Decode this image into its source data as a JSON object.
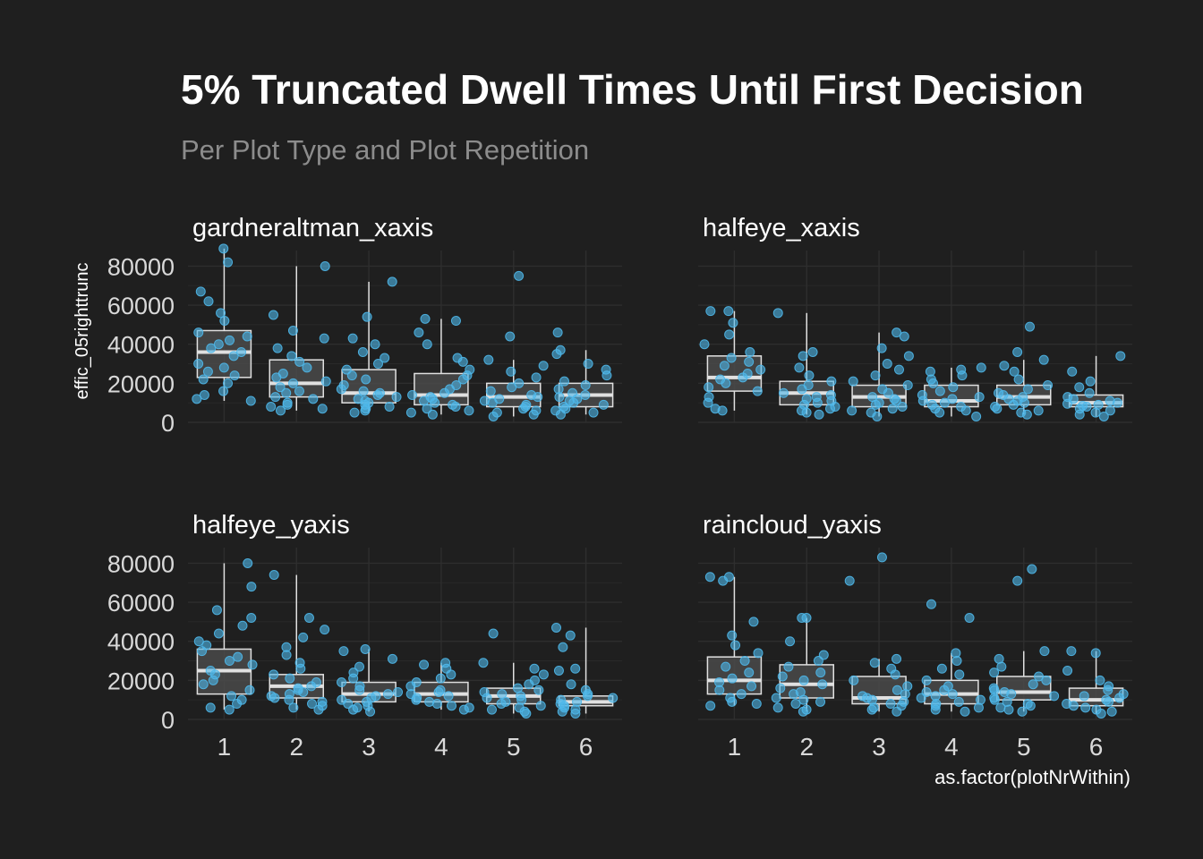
{
  "chart_data": {
    "type": "box",
    "title": "5% Truncated Dwell Times Until First Decision",
    "subtitle": "Per Plot Type and Plot Repetition",
    "xlabel": "as.factor(plotNrWithin)",
    "ylabel": "effic_05righttrunc",
    "categories": [
      "1",
      "2",
      "3",
      "4",
      "5",
      "6"
    ],
    "y_ticks": [
      "0",
      "20000",
      "40000",
      "60000",
      "80000"
    ],
    "ylim": [
      0,
      88000
    ],
    "grid": true,
    "colors": {
      "background": "#1f1f1f",
      "box_fill": "#4a4a4a",
      "box_line": "#e0e0e0",
      "points": "#4fb8ea",
      "grid": "#2e2e2e"
    },
    "facets": [
      {
        "label": "gardneraltman_xaxis",
        "boxes": [
          {
            "q1": 23000,
            "median": 36000,
            "q3": 47000,
            "lower": 11000,
            "upper": 89000
          },
          {
            "q1": 13000,
            "median": 20000,
            "q3": 32000,
            "lower": 6000,
            "upper": 80000
          },
          {
            "q1": 10000,
            "median": 15000,
            "q3": 27000,
            "lower": 5000,
            "upper": 72000
          },
          {
            "q1": 9000,
            "median": 14000,
            "q3": 25000,
            "lower": 4000,
            "upper": 53000
          },
          {
            "q1": 8000,
            "median": 13000,
            "q3": 20000,
            "lower": 3000,
            "upper": 32000
          },
          {
            "q1": 8000,
            "median": 14000,
            "q3": 20000,
            "lower": 4000,
            "upper": 37000
          }
        ],
        "points": [
          [
            89000,
            82000,
            67000,
            62000,
            56000,
            52000,
            46000,
            44000,
            42000,
            40000,
            38000,
            36000,
            34000,
            30000,
            28000,
            26000,
            24000,
            22000,
            20000,
            16000,
            14000,
            12000,
            11000
          ],
          [
            80000,
            55000,
            47000,
            43000,
            38000,
            34000,
            31000,
            28000,
            25000,
            23000,
            21000,
            20000,
            18000,
            16000,
            15000,
            13000,
            12000,
            10000,
            9000,
            8000,
            7000,
            6000
          ],
          [
            72000,
            54000,
            43000,
            40000,
            36000,
            33000,
            30000,
            27000,
            24000,
            22000,
            19000,
            17000,
            16000,
            15000,
            14000,
            13000,
            12000,
            11000,
            10000,
            9000,
            8000,
            7000,
            6000,
            5000
          ],
          [
            53000,
            52000,
            46000,
            40000,
            33000,
            31000,
            27000,
            24000,
            22000,
            19000,
            17000,
            15000,
            14000,
            13000,
            12000,
            11000,
            10000,
            9000,
            8000,
            7000,
            6000,
            5000,
            4000
          ],
          [
            75000,
            44000,
            32000,
            29000,
            26000,
            23000,
            20000,
            18000,
            16000,
            14000,
            13000,
            12000,
            11000,
            10000,
            9000,
            8000,
            7000,
            6000,
            5000,
            4000,
            3000
          ],
          [
            46000,
            37000,
            35000,
            30000,
            27000,
            24000,
            21000,
            19000,
            17000,
            15000,
            14000,
            13000,
            12000,
            11000,
            10000,
            9000,
            8000,
            7000,
            6000,
            5000,
            4000
          ]
        ]
      },
      {
        "label": "halfeye_xaxis",
        "boxes": [
          {
            "q1": 16000,
            "median": 23000,
            "q3": 34000,
            "lower": 6000,
            "upper": 57000
          },
          {
            "q1": 9000,
            "median": 15000,
            "q3": 21000,
            "lower": 4000,
            "upper": 56000
          },
          {
            "q1": 8000,
            "median": 13000,
            "q3": 19000,
            "lower": 3000,
            "upper": 46000
          },
          {
            "q1": 8000,
            "median": 11000,
            "q3": 19000,
            "lower": 3000,
            "upper": 28000
          },
          {
            "q1": 9000,
            "median": 13000,
            "q3": 19000,
            "lower": 4000,
            "upper": 32000
          },
          {
            "q1": 8000,
            "median": 10000,
            "q3": 14000,
            "lower": 3000,
            "upper": 34000
          }
        ],
        "points": [
          [
            57000,
            57000,
            51000,
            45000,
            40000,
            36000,
            33000,
            31000,
            29000,
            27000,
            25000,
            23000,
            22000,
            20000,
            18000,
            16000,
            13000,
            10000,
            7000,
            6000
          ],
          [
            56000,
            36000,
            34000,
            28000,
            24000,
            21000,
            19000,
            17000,
            15000,
            14000,
            13000,
            12000,
            11000,
            10000,
            9000,
            8000,
            7000,
            6000,
            5000,
            4000
          ],
          [
            46000,
            44000,
            38000,
            34000,
            30000,
            27000,
            24000,
            21000,
            19000,
            17000,
            15000,
            13000,
            12000,
            11000,
            10000,
            9000,
            8000,
            7000,
            6000,
            5000,
            3000
          ],
          [
            28000,
            27000,
            26000,
            24000,
            22000,
            20000,
            18000,
            16000,
            14000,
            13000,
            12000,
            11000,
            10000,
            9000,
            8000,
            7000,
            6000,
            5000,
            3000
          ],
          [
            49000,
            36000,
            32000,
            29000,
            26000,
            22000,
            19000,
            17000,
            15000,
            14000,
            13000,
            12000,
            11000,
            10000,
            9000,
            8000,
            7000,
            6000,
            5000,
            4000
          ],
          [
            34000,
            26000,
            21000,
            18000,
            15000,
            13000,
            12000,
            11000,
            10000,
            9500,
            9000,
            8500,
            8000,
            7000,
            6000,
            5000,
            4000,
            3000
          ]
        ]
      },
      {
        "label": "halfeye_yaxis",
        "boxes": [
          {
            "q1": 13000,
            "median": 25000,
            "q3": 36000,
            "lower": 5000,
            "upper": 80000
          },
          {
            "q1": 11000,
            "median": 17000,
            "q3": 23000,
            "lower": 5000,
            "upper": 74000
          },
          {
            "q1": 9000,
            "median": 13000,
            "q3": 19000,
            "lower": 4000,
            "upper": 36000
          },
          {
            "q1": 9000,
            "median": 13000,
            "q3": 19000,
            "lower": 5000,
            "upper": 29000
          },
          {
            "q1": 8000,
            "median": 12000,
            "q3": 16000,
            "lower": 3000,
            "upper": 29000
          },
          {
            "q1": 7000,
            "median": 9000,
            "q3": 12000,
            "lower": 3000,
            "upper": 47000
          }
        ],
        "points": [
          [
            80000,
            68000,
            56000,
            52000,
            48000,
            44000,
            40000,
            38000,
            35000,
            32000,
            30000,
            28000,
            25000,
            23000,
            20000,
            18000,
            15000,
            12000,
            10000,
            8000,
            6000,
            5000
          ],
          [
            74000,
            52000,
            46000,
            42000,
            37000,
            33000,
            29000,
            26000,
            23000,
            21000,
            19000,
            17000,
            16000,
            15000,
            14000,
            13000,
            12000,
            11000,
            10000,
            9000,
            8000,
            7000,
            6000,
            5000
          ],
          [
            36000,
            35000,
            31000,
            27000,
            24000,
            21000,
            19000,
            17000,
            15000,
            14000,
            13000,
            12000,
            11000,
            10000,
            9000,
            8000,
            7000,
            6000,
            5000,
            4000
          ],
          [
            29000,
            28000,
            26000,
            23000,
            21000,
            19000,
            17000,
            15000,
            14000,
            13000,
            12000,
            11000,
            10000,
            9000,
            8000,
            7000,
            6000,
            5000
          ],
          [
            44000,
            29000,
            26000,
            23000,
            20000,
            18000,
            16000,
            15000,
            14000,
            13000,
            12000,
            11000,
            10000,
            9000,
            8000,
            7000,
            6000,
            5000,
            4000,
            3000
          ],
          [
            47000,
            43000,
            37000,
            26000,
            25000,
            18000,
            15000,
            13000,
            12000,
            11000,
            10000,
            9000,
            8000,
            7000,
            6000,
            5000,
            4000,
            3000
          ]
        ]
      },
      {
        "label": "raincloud_yaxis",
        "boxes": [
          {
            "q1": 13000,
            "median": 20000,
            "q3": 32000,
            "lower": 7000,
            "upper": 73000
          },
          {
            "q1": 11000,
            "median": 18000,
            "q3": 28000,
            "lower": 4000,
            "upper": 52000
          },
          {
            "q1": 8000,
            "median": 11000,
            "q3": 22000,
            "lower": 4000,
            "upper": 31000
          },
          {
            "q1": 8000,
            "median": 13000,
            "q3": 20000,
            "lower": 4000,
            "upper": 34000
          },
          {
            "q1": 10000,
            "median": 14000,
            "q3": 22000,
            "lower": 4000,
            "upper": 35000
          },
          {
            "q1": 7000,
            "median": 10000,
            "q3": 16000,
            "lower": 3000,
            "upper": 35000
          }
        ],
        "points": [
          [
            73000,
            73000,
            71000,
            50000,
            43000,
            38000,
            34000,
            30000,
            27000,
            24000,
            21000,
            19000,
            17000,
            15000,
            13000,
            11000,
            9000,
            8000,
            7000
          ],
          [
            52000,
            52000,
            40000,
            33000,
            30000,
            27000,
            24000,
            22000,
            20000,
            18000,
            16000,
            14000,
            13000,
            11000,
            10000,
            9000,
            8000,
            6000,
            5000,
            4000
          ],
          [
            83000,
            71000,
            31000,
            29000,
            26000,
            23000,
            20000,
            17000,
            15000,
            13000,
            12000,
            11000,
            10000,
            9000,
            8000,
            7000,
            6000,
            5000,
            4000
          ],
          [
            59000,
            52000,
            34000,
            30000,
            26000,
            23000,
            20000,
            17000,
            15000,
            14000,
            13000,
            12000,
            11000,
            10000,
            9000,
            8000,
            7000,
            6000,
            5000,
            4000
          ],
          [
            77000,
            71000,
            35000,
            31000,
            27000,
            24000,
            22000,
            20000,
            18000,
            16000,
            15000,
            14000,
            13000,
            12000,
            11000,
            10000,
            9000,
            8000,
            7000,
            6000,
            5000,
            4000
          ],
          [
            35000,
            34000,
            25000,
            20000,
            17000,
            15000,
            13000,
            12000,
            11000,
            10000,
            9000,
            8000,
            7000,
            6000,
            5000,
            4000,
            3000
          ]
        ]
      }
    ]
  }
}
